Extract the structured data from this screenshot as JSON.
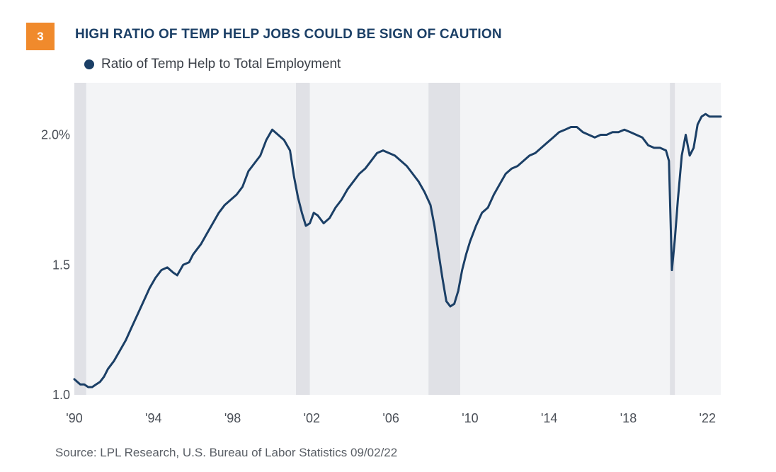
{
  "header": {
    "badge": "3",
    "title": "HIGH RATIO OF TEMP HELP JOBS COULD BE SIGN OF CAUTION"
  },
  "legend": {
    "label": "Ratio of Temp Help to Total Employment",
    "color": "#1b3f66"
  },
  "source": "Source: LPL Research, U.S. Bureau of Labor Statistics 09/02/22",
  "colors": {
    "plot_bg": "#f3f4f6",
    "recession": "#e0e1e6",
    "line": "#1b3f66",
    "badge": "#f08a2c"
  },
  "chart_data": {
    "type": "line",
    "title": "HIGH RATIO OF TEMP HELP JOBS COULD BE SIGN OF CAUTION",
    "xlabel": "",
    "ylabel": "",
    "xlim": [
      1990.0,
      2022.67
    ],
    "ylim": [
      1.0,
      2.2
    ],
    "grid": false,
    "legend_position": "top-left",
    "x_ticks": [
      {
        "value": 1990,
        "label": "'90"
      },
      {
        "value": 1994,
        "label": "'94"
      },
      {
        "value": 1998,
        "label": "'98"
      },
      {
        "value": 2002,
        "label": "'02"
      },
      {
        "value": 2006,
        "label": "'06"
      },
      {
        "value": 2010,
        "label": "'10"
      },
      {
        "value": 2014,
        "label": "'14"
      },
      {
        "value": 2018,
        "label": "'18"
      },
      {
        "value": 2022,
        "label": "'22"
      }
    ],
    "y_ticks": [
      {
        "value": 1.0,
        "label": "1.0"
      },
      {
        "value": 1.5,
        "label": "1.5"
      },
      {
        "value": 2.0,
        "label": "2.0%"
      }
    ],
    "recessions": [
      [
        1990.0,
        1990.6
      ],
      [
        2001.2,
        2001.9
      ],
      [
        2007.9,
        2009.5
      ],
      [
        2020.1,
        2020.35
      ]
    ],
    "series": [
      {
        "name": "Ratio of Temp Help to Total Employment",
        "x": [
          1990.0,
          1990.15,
          1990.3,
          1990.5,
          1990.7,
          1990.9,
          1991.1,
          1991.3,
          1991.5,
          1991.7,
          1992.0,
          1992.3,
          1992.6,
          1992.9,
          1993.2,
          1993.5,
          1993.8,
          1994.1,
          1994.4,
          1994.7,
          1995.0,
          1995.2,
          1995.5,
          1995.8,
          1996.0,
          1996.2,
          1996.4,
          1996.7,
          1997.0,
          1997.3,
          1997.6,
          1997.9,
          1998.2,
          1998.5,
          1998.8,
          1999.1,
          1999.4,
          1999.7,
          2000.0,
          2000.3,
          2000.6,
          2000.9,
          2001.1,
          2001.3,
          2001.5,
          2001.7,
          2001.9,
          2002.1,
          2002.3,
          2002.6,
          2002.9,
          2003.2,
          2003.5,
          2003.8,
          2004.1,
          2004.4,
          2004.7,
          2005.0,
          2005.3,
          2005.6,
          2005.9,
          2006.2,
          2006.5,
          2006.8,
          2007.1,
          2007.4,
          2007.7,
          2008.0,
          2008.2,
          2008.4,
          2008.6,
          2008.8,
          2009.0,
          2009.2,
          2009.4,
          2009.6,
          2009.8,
          2010.0,
          2010.3,
          2010.6,
          2010.9,
          2011.2,
          2011.5,
          2011.8,
          2012.1,
          2012.4,
          2012.7,
          2013.0,
          2013.3,
          2013.6,
          2013.9,
          2014.2,
          2014.5,
          2014.8,
          2015.1,
          2015.4,
          2015.7,
          2016.0,
          2016.3,
          2016.6,
          2016.9,
          2017.2,
          2017.5,
          2017.8,
          2018.1,
          2018.4,
          2018.7,
          2019.0,
          2019.3,
          2019.6,
          2019.9,
          2020.05,
          2020.2,
          2020.35,
          2020.5,
          2020.7,
          2020.9,
          2021.1,
          2021.3,
          2021.5,
          2021.7,
          2021.9,
          2022.1,
          2022.3,
          2022.5,
          2022.67
        ],
        "values": [
          1.06,
          1.05,
          1.04,
          1.04,
          1.03,
          1.03,
          1.04,
          1.05,
          1.07,
          1.1,
          1.13,
          1.17,
          1.21,
          1.26,
          1.31,
          1.36,
          1.41,
          1.45,
          1.48,
          1.49,
          1.47,
          1.46,
          1.5,
          1.51,
          1.54,
          1.56,
          1.58,
          1.62,
          1.66,
          1.7,
          1.73,
          1.75,
          1.77,
          1.8,
          1.86,
          1.89,
          1.92,
          1.98,
          2.02,
          2.0,
          1.98,
          1.94,
          1.84,
          1.76,
          1.7,
          1.65,
          1.66,
          1.7,
          1.69,
          1.66,
          1.68,
          1.72,
          1.75,
          1.79,
          1.82,
          1.85,
          1.87,
          1.9,
          1.93,
          1.94,
          1.93,
          1.92,
          1.9,
          1.88,
          1.85,
          1.82,
          1.78,
          1.73,
          1.65,
          1.55,
          1.45,
          1.36,
          1.34,
          1.35,
          1.4,
          1.48,
          1.54,
          1.59,
          1.65,
          1.7,
          1.72,
          1.77,
          1.81,
          1.85,
          1.87,
          1.88,
          1.9,
          1.92,
          1.93,
          1.95,
          1.97,
          1.99,
          2.01,
          2.02,
          2.03,
          2.03,
          2.01,
          2.0,
          1.99,
          2.0,
          2.0,
          2.01,
          2.01,
          2.02,
          2.01,
          2.0,
          1.99,
          1.96,
          1.95,
          1.95,
          1.94,
          1.9,
          1.48,
          1.6,
          1.75,
          1.92,
          2.0,
          1.92,
          1.95,
          2.04,
          2.07,
          2.08,
          2.07,
          2.07,
          2.07,
          2.07
        ]
      }
    ]
  }
}
